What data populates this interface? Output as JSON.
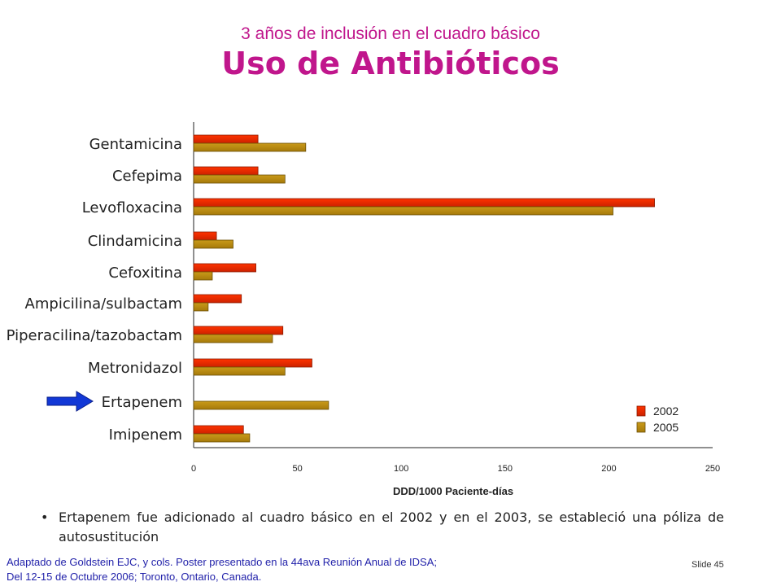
{
  "header": {
    "subtitle": "3 años de inclusión en el cuadro básico",
    "title": "Uso de Antibióticos"
  },
  "chart_data": {
    "type": "bar",
    "orientation": "horizontal",
    "categories": [
      "Gentamicina",
      "Cefepima",
      "Levofloxacina",
      "Clindamicina",
      "Cefoxitina",
      "Ampicilina/sulbactam",
      "Piperacilina/tazobactam",
      "Metronidazol",
      "Ertapenem",
      "Imipenem"
    ],
    "series": [
      {
        "name": "2002",
        "values": [
          31,
          31,
          222,
          11,
          30,
          23,
          43,
          57,
          0,
          24
        ],
        "color": "#ff3300"
      },
      {
        "name": "2005",
        "values": [
          54,
          44,
          202,
          19,
          9,
          7,
          38,
          44,
          65,
          27
        ],
        "color": "#c99a1a"
      }
    ],
    "xlabel": "DDD/1000 Paciente-días",
    "xlim": [
      0,
      250
    ],
    "xticks": [
      "0",
      "50",
      "100",
      "150",
      "200",
      "250"
    ],
    "legend_position": "bottom-right",
    "highlight_category": "Ertapenem"
  },
  "bullet": "Ertapenem fue adicionado al cuadro básico en el 2002 y en el 2003, se estableció una póliza de autosustitución",
  "footer": {
    "line1": "Adaptado de Goldstein EJC, y cols.  Poster presentado en la 44ava Reunión Anual de  IDSA;",
    "line2": "Del 12-15 de Octubre 2006; Toronto, Ontario, Canada."
  },
  "slide_number": "Slide 45"
}
